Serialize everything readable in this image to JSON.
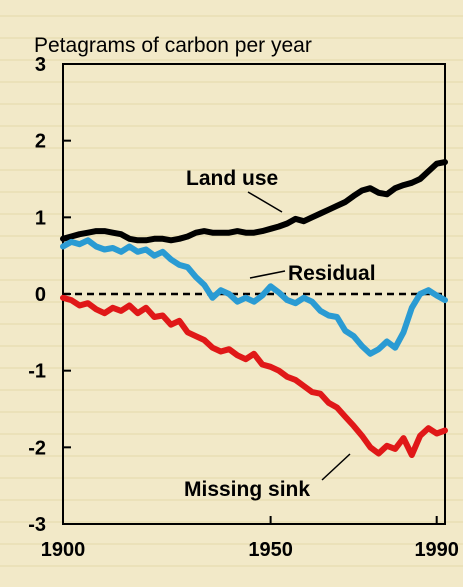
{
  "chart_data": {
    "type": "line",
    "title": "",
    "ylabel": "Petagrams of carbon per year",
    "xlabel": "",
    "xlim": [
      1900,
      1992
    ],
    "ylim": [
      -3,
      3
    ],
    "xticks": [
      1900,
      1950,
      1990
    ],
    "yticks": [
      3,
      2,
      1,
      0,
      -1,
      -2,
      -3
    ],
    "zero_line": "dashed",
    "grid": false,
    "colors": {
      "land_use": "#000000",
      "residual": "#2a9bd3",
      "missing_sink": "#e01818",
      "background": "#f0e7c4"
    },
    "annotations": {
      "land_use": "Land use",
      "residual": "Residual",
      "missing_sink": "Missing sink"
    },
    "series": [
      {
        "key": "land_use",
        "x": [
          1900,
          1902,
          1904,
          1906,
          1908,
          1910,
          1912,
          1914,
          1916,
          1918,
          1920,
          1922,
          1924,
          1926,
          1928,
          1930,
          1932,
          1934,
          1936,
          1938,
          1940,
          1942,
          1944,
          1946,
          1948,
          1950,
          1952,
          1954,
          1956,
          1958,
          1960,
          1962,
          1964,
          1966,
          1968,
          1970,
          1972,
          1974,
          1976,
          1978,
          1980,
          1982,
          1984,
          1986,
          1988,
          1990,
          1992
        ],
        "values": [
          0.72,
          0.75,
          0.78,
          0.8,
          0.82,
          0.82,
          0.8,
          0.78,
          0.72,
          0.7,
          0.7,
          0.72,
          0.72,
          0.7,
          0.72,
          0.75,
          0.8,
          0.82,
          0.8,
          0.8,
          0.8,
          0.82,
          0.8,
          0.8,
          0.82,
          0.85,
          0.88,
          0.92,
          0.98,
          0.95,
          1.0,
          1.05,
          1.1,
          1.15,
          1.2,
          1.28,
          1.35,
          1.38,
          1.32,
          1.3,
          1.38,
          1.42,
          1.45,
          1.5,
          1.6,
          1.7,
          1.72
        ]
      },
      {
        "key": "residual",
        "x": [
          1900,
          1902,
          1904,
          1906,
          1908,
          1910,
          1912,
          1914,
          1916,
          1918,
          1920,
          1922,
          1924,
          1926,
          1928,
          1930,
          1932,
          1934,
          1936,
          1938,
          1940,
          1942,
          1944,
          1946,
          1948,
          1950,
          1952,
          1954,
          1956,
          1958,
          1960,
          1962,
          1964,
          1966,
          1968,
          1970,
          1972,
          1974,
          1976,
          1978,
          1980,
          1982,
          1984,
          1986,
          1988,
          1990,
          1992
        ],
        "values": [
          0.62,
          0.68,
          0.65,
          0.7,
          0.62,
          0.58,
          0.6,
          0.55,
          0.62,
          0.55,
          0.58,
          0.5,
          0.55,
          0.45,
          0.38,
          0.35,
          0.22,
          0.12,
          -0.05,
          0.05,
          0.0,
          -0.1,
          -0.05,
          -0.1,
          -0.02,
          0.1,
          0.02,
          -0.08,
          -0.12,
          -0.05,
          -0.1,
          -0.22,
          -0.28,
          -0.3,
          -0.48,
          -0.55,
          -0.68,
          -0.78,
          -0.72,
          -0.62,
          -0.7,
          -0.5,
          -0.18,
          0.0,
          0.05,
          -0.02,
          -0.08
        ]
      },
      {
        "key": "missing_sink",
        "x": [
          1900,
          1902,
          1904,
          1906,
          1908,
          1910,
          1912,
          1914,
          1916,
          1918,
          1920,
          1922,
          1924,
          1926,
          1928,
          1930,
          1932,
          1934,
          1936,
          1938,
          1940,
          1942,
          1944,
          1946,
          1948,
          1950,
          1952,
          1954,
          1956,
          1958,
          1960,
          1962,
          1964,
          1966,
          1968,
          1970,
          1972,
          1974,
          1976,
          1978,
          1980,
          1982,
          1984,
          1986,
          1988,
          1990,
          1992
        ],
        "values": [
          -0.05,
          -0.08,
          -0.15,
          -0.12,
          -0.2,
          -0.25,
          -0.18,
          -0.22,
          -0.15,
          -0.25,
          -0.18,
          -0.3,
          -0.28,
          -0.4,
          -0.35,
          -0.5,
          -0.55,
          -0.6,
          -0.7,
          -0.75,
          -0.72,
          -0.8,
          -0.85,
          -0.78,
          -0.92,
          -0.95,
          -1.0,
          -1.08,
          -1.12,
          -1.2,
          -1.28,
          -1.3,
          -1.42,
          -1.48,
          -1.6,
          -1.72,
          -1.85,
          -2.0,
          -2.08,
          -1.98,
          -2.02,
          -1.88,
          -2.1,
          -1.85,
          -1.75,
          -1.82,
          -1.78
        ]
      }
    ]
  }
}
